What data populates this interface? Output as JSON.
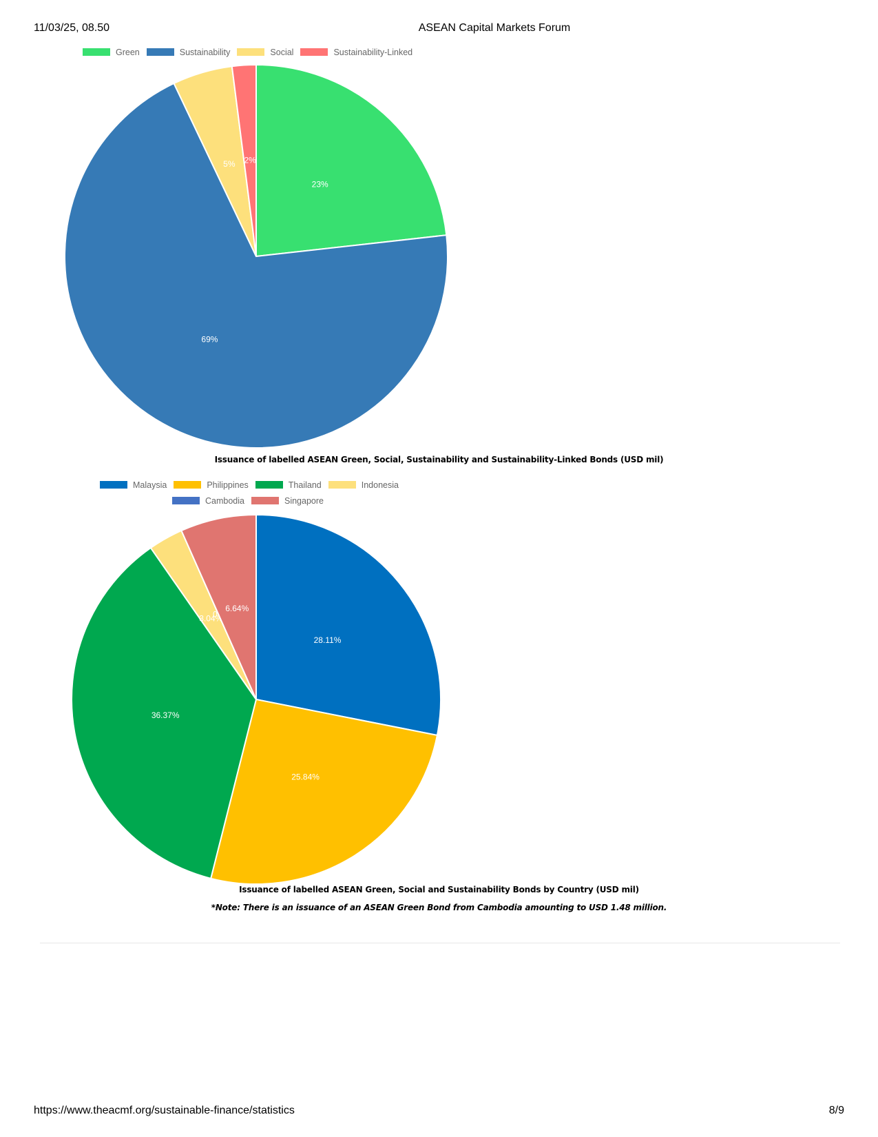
{
  "header": {
    "datetime": "11/03/25, 08.50",
    "title": "ASEAN Capital Markets Forum"
  },
  "footer": {
    "url": "https://www.theacmf.org/sustainable-finance/statistics",
    "page": "8/9"
  },
  "chart_data": [
    {
      "type": "pie",
      "title": "Issuance of labelled ASEAN Green, Social, Sustainability and Sustainability-Linked Bonds (USD mil)",
      "legend_position": "top",
      "categories": [
        "Green",
        "Sustainability",
        "Social",
        "Sustainability-Linked"
      ],
      "values": [
        23,
        69,
        5,
        2
      ],
      "data_labels": [
        "23%",
        "69%",
        "5%",
        "2%"
      ],
      "colors": [
        "#38e070",
        "#367ab6",
        "#fde07c",
        "#ff7474"
      ]
    },
    {
      "type": "pie",
      "title": "Issuance of labelled ASEAN Green, Social and Sustainability Bonds by Country (USD mil)",
      "note": "*Note: There is an issuance of an ASEAN Green Bond from Cambodia amounting to USD 1.48 million.",
      "legend_position": "top",
      "categories": [
        "Malaysia",
        "Philippines",
        "Thailand",
        "Indonesia",
        "Cambodia",
        "Singapore"
      ],
      "values": [
        28.11,
        25.84,
        36.37,
        3.04,
        0,
        6.64
      ],
      "data_labels": [
        "28.11%",
        "25.84%",
        "36.37%",
        "3.04%",
        "0%",
        "6.64%"
      ],
      "colors": [
        "#0070c0",
        "#ffc000",
        "#00a84f",
        "#fde07c",
        "#4472c4",
        "#e07570"
      ]
    }
  ]
}
